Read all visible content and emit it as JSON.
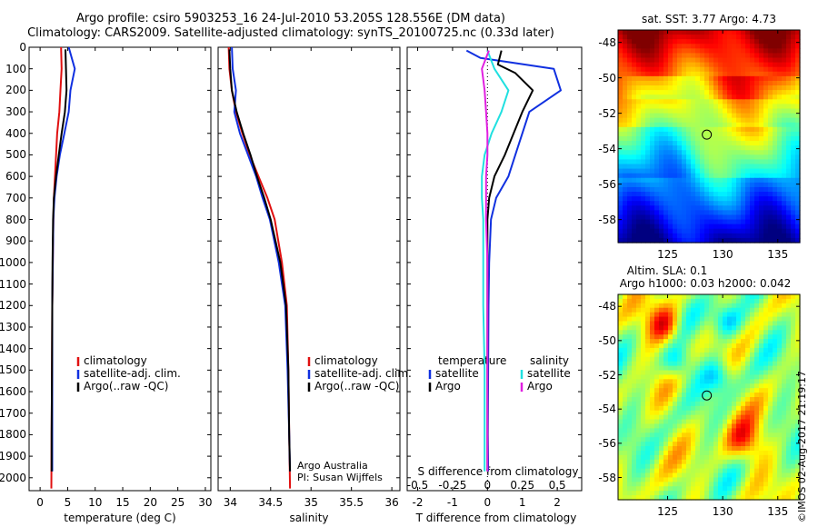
{
  "header": {
    "line1": "Argo profile: csiro 5903253_16 24-Jul-2010 53.205S 128.556E (DM data)",
    "line2": "Climatology: CARS2009. Satellite-adjusted climatology: synTS_20100725.nc (0.33d later)"
  },
  "depth_ticks": [
    "0",
    "100",
    "200",
    "300",
    "400",
    "500",
    "600",
    "700",
    "800",
    "900",
    "1000",
    "1100",
    "1200",
    "1300",
    "1400",
    "1500",
    "1600",
    "1700",
    "1800",
    "1900",
    "2000"
  ],
  "panel_temp": {
    "xlabel": "temperature (deg C)",
    "xticks": [
      "0",
      "5",
      "10",
      "15",
      "20",
      "25",
      "30"
    ],
    "legend": [
      "climatology",
      "satellite-adj. clim.",
      "Argo(..raw -QC)"
    ]
  },
  "panel_sal": {
    "xlabel": "salinity",
    "xticks": [
      "34",
      "34.5",
      "35",
      "35.5",
      "36"
    ],
    "legend": [
      "climatology",
      "satellite-adj. clim.",
      "Argo(..raw -QC)"
    ],
    "note1": "Argo Australia",
    "note2": "PI: Susan Wijffels"
  },
  "panel_diff": {
    "xlabel": "T difference from climatology",
    "xlabel_top": "S difference from climatology",
    "xticks_bottom": [
      "-2",
      "-1",
      "0",
      "1",
      "2"
    ],
    "xticks_top": [
      "-0.5",
      "-0.25",
      "0",
      "0.25",
      "0.5"
    ],
    "legend_t_head": "temperature",
    "legend_s_head": "salinity",
    "legend_t": [
      "satellite",
      "Argo"
    ],
    "legend_s": [
      "satellite",
      "Argo"
    ]
  },
  "map_sst": {
    "title": "sat. SST: 3.77 Argo: 4.73",
    "yticks": [
      "-48",
      "-50",
      "-52",
      "-54",
      "-56",
      "-58"
    ],
    "xticks": [
      "125",
      "130",
      "135"
    ]
  },
  "map_sla": {
    "title1": "Altim. SLA: 0.1",
    "title2": "Argo h1000: 0.03 h2000: 0.042",
    "yticks": [
      "-48",
      "-50",
      "-52",
      "-54",
      "-56",
      "-58"
    ],
    "xticks": [
      "125",
      "130",
      "135"
    ]
  },
  "watermark": "©IMOS 02-Aug-2017 21:19:17",
  "colors": {
    "climatology": "#e01010",
    "satellite": "#1030e0",
    "argo": "#000000",
    "sal_satellite": "#20e0e0",
    "sal_argo": "#e020e0"
  },
  "chart_data": [
    {
      "type": "line",
      "title": "",
      "xlabel": "temperature (deg C)",
      "ylabel": "",
      "xlim": [
        -2,
        31
      ],
      "ylim": [
        2060,
        0
      ],
      "series": [
        {
          "name": "climatology",
          "x": [
            3.8,
            3.9,
            3.7,
            3.5,
            3.1,
            2.9,
            2.7,
            2.5,
            2.4,
            2.3,
            2.2,
            2.15,
            2.1,
            2.05
          ],
          "y": [
            0,
            100,
            200,
            300,
            400,
            500,
            600,
            700,
            800,
            1000,
            1200,
            1500,
            1800,
            2050
          ]
        },
        {
          "name": "satellite-adj. clim.",
          "x": [
            5.2,
            6.3,
            5.5,
            5.2,
            4.4,
            3.6,
            3.0,
            2.6,
            2.4,
            2.3,
            2.2,
            2.2,
            2.2,
            2.2
          ],
          "y": [
            0,
            100,
            200,
            300,
            400,
            500,
            600,
            700,
            800,
            1000,
            1200,
            1500,
            1800,
            1970
          ]
        },
        {
          "name": "Argo(..raw -QC)",
          "x": [
            4.6,
            4.7,
            4.8,
            4.5,
            3.9,
            3.4,
            2.9,
            2.5,
            2.35,
            2.25,
            2.2,
            2.15,
            2.1,
            2.1
          ],
          "y": [
            10,
            100,
            200,
            300,
            400,
            500,
            600,
            700,
            800,
            1000,
            1200,
            1500,
            1800,
            1970
          ]
        }
      ]
    },
    {
      "type": "line",
      "title": "",
      "xlabel": "salinity",
      "ylabel": "",
      "xlim": [
        33.85,
        36.1
      ],
      "ylim": [
        2060,
        0
      ],
      "series": [
        {
          "name": "climatology",
          "x": [
            33.98,
            33.99,
            34.02,
            34.07,
            34.15,
            34.24,
            34.35,
            34.46,
            34.55,
            34.64,
            34.7,
            34.72,
            34.73,
            34.74
          ],
          "y": [
            0,
            100,
            200,
            300,
            400,
            500,
            600,
            700,
            800,
            1000,
            1200,
            1500,
            1800,
            2050
          ]
        },
        {
          "name": "satellite-adj. clim.",
          "x": [
            34.02,
            34.03,
            34.07,
            34.05,
            34.12,
            34.22,
            34.32,
            34.4,
            34.49,
            34.6,
            34.68,
            34.71,
            34.73,
            34.74
          ],
          "y": [
            0,
            100,
            200,
            300,
            400,
            500,
            600,
            700,
            800,
            1000,
            1200,
            1500,
            1800,
            1970
          ]
        },
        {
          "name": "Argo(..raw -QC)",
          "x": [
            33.99,
            34.0,
            34.02,
            34.08,
            34.16,
            34.25,
            34.33,
            34.42,
            34.5,
            34.62,
            34.69,
            34.72,
            34.73,
            34.74
          ],
          "y": [
            10,
            100,
            200,
            300,
            400,
            500,
            600,
            700,
            800,
            1000,
            1200,
            1500,
            1800,
            1970
          ]
        }
      ]
    },
    {
      "type": "line",
      "title": "",
      "xlabel": "T difference from climatology",
      "xlabel_top": "S difference from climatology",
      "xlim": [
        -2.3,
        2.7
      ],
      "x2lim": [
        -0.575,
        0.675
      ],
      "ylim": [
        2060,
        0
      ],
      "series": [
        {
          "name": "temperature satellite",
          "axis": "T",
          "x": [
            -0.6,
            -0.2,
            1.9,
            2.1,
            1.2,
            0.8,
            0.6,
            0.25,
            0.1,
            0.05,
            0.03,
            0.02,
            0.01,
            0.02
          ],
          "y": [
            15,
            50,
            100,
            200,
            300,
            500,
            600,
            700,
            800,
            1000,
            1200,
            1500,
            1800,
            1970
          ]
        },
        {
          "name": "temperature Argo",
          "axis": "T",
          "x": [
            0.4,
            0.3,
            0.8,
            1.3,
            1.0,
            0.5,
            0.2,
            0.05,
            0.0,
            0.0,
            0.0,
            0.0,
            0.0,
            0.0
          ],
          "y": [
            15,
            80,
            120,
            200,
            300,
            500,
            600,
            700,
            800,
            1000,
            1200,
            1500,
            1800,
            1970
          ]
        },
        {
          "name": "salinity satellite",
          "axis": "S",
          "x": [
            0.0,
            0.05,
            0.15,
            0.1,
            0.03,
            -0.02,
            -0.04,
            -0.04,
            -0.03,
            -0.03,
            -0.03,
            -0.02,
            -0.02,
            -0.02
          ],
          "y": [
            15,
            100,
            200,
            300,
            400,
            500,
            600,
            700,
            800,
            1000,
            1200,
            1500,
            1800,
            1970
          ]
        },
        {
          "name": "salinity Argo",
          "axis": "S",
          "x": [
            0.01,
            -0.04,
            -0.02,
            -0.01,
            0.0,
            0.0,
            -0.01,
            -0.01,
            -0.01,
            0.0,
            0.0,
            0.0,
            0.0,
            0.0
          ],
          "y": [
            15,
            100,
            200,
            300,
            400,
            500,
            600,
            700,
            800,
            1000,
            1200,
            1500,
            1800,
            1970
          ]
        }
      ]
    },
    {
      "type": "heatmap",
      "title": "sat. SST: 3.77 Argo: 4.73",
      "xlim": [
        120.5,
        137
      ],
      "ylim": [
        -59.3,
        -47.3
      ],
      "marker": {
        "lon": 128.556,
        "lat": -53.205
      }
    },
    {
      "type": "heatmap",
      "title": "Altim. SLA: 0.1",
      "xlim": [
        120.5,
        137
      ],
      "ylim": [
        -59.3,
        -47.3
      ],
      "marker": {
        "lon": 128.556,
        "lat": -53.205
      }
    }
  ]
}
